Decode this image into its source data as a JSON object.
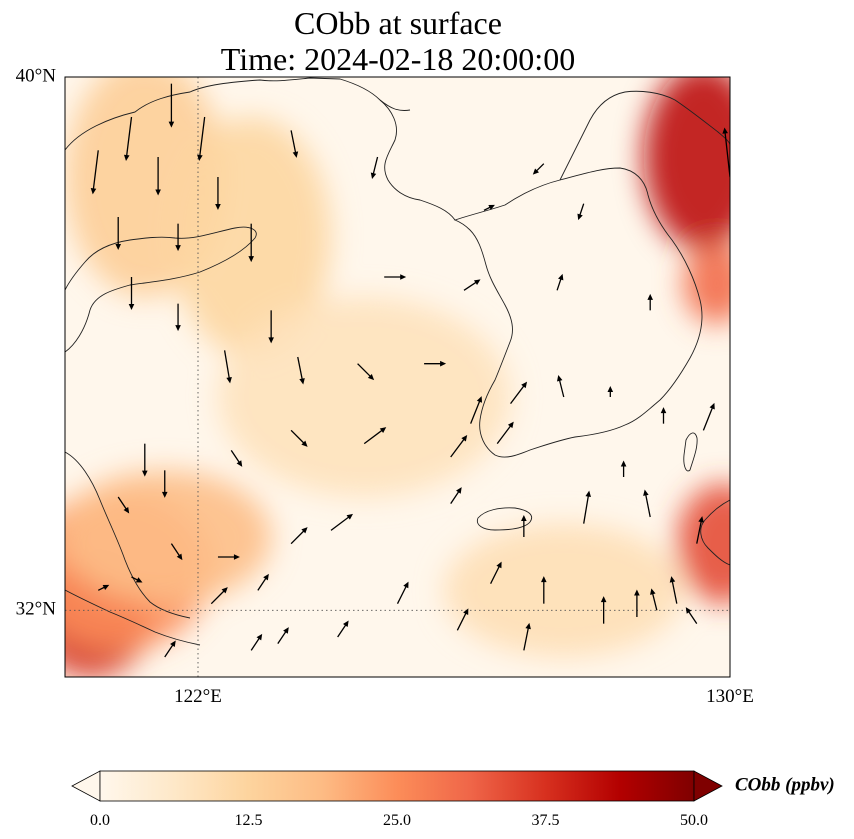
{
  "title_line1": "CObb at surface",
  "title_line2": "Time: 2024-02-18 20:00:00",
  "map": {
    "lon_range": [
      120,
      130
    ],
    "lat_range": [
      31,
      40
    ],
    "lat_ticks": [
      {
        "value": 40,
        "label": "40°N"
      },
      {
        "value": 32,
        "label": "32°N"
      }
    ],
    "lon_ticks": [
      {
        "value": 122,
        "label": "122°E"
      },
      {
        "value": 130,
        "label": "130°E"
      }
    ],
    "gridlines": {
      "lon": [
        122
      ],
      "lat": [
        32
      ],
      "style": "dotted"
    }
  },
  "colorbar": {
    "label": "CObb (ppbv)",
    "min": 0,
    "max": 50,
    "ticks": [
      "0.0",
      "12.5",
      "25.0",
      "37.5",
      "50.0"
    ],
    "extend": "both",
    "colormap": "OrRd",
    "stops": [
      "#fff7ec",
      "#fee8c8",
      "#fdd49e",
      "#fdbb84",
      "#fc8d59",
      "#ef6548",
      "#d7301f",
      "#b30000",
      "#7f0000"
    ]
  },
  "field_blobs": [
    {
      "lon": 120.4,
      "lat": 31.9,
      "rx": 0.9,
      "ry": 0.9,
      "value": 38
    },
    {
      "lon": 120.8,
      "lat": 32.6,
      "rx": 1.4,
      "ry": 1.2,
      "value": 25
    },
    {
      "lon": 121.5,
      "lat": 33.1,
      "rx": 1.6,
      "ry": 1.0,
      "value": 18
    },
    {
      "lon": 121.2,
      "lat": 38.5,
      "rx": 1.2,
      "ry": 1.8,
      "value": 14
    },
    {
      "lon": 122.8,
      "lat": 37.6,
      "rx": 1.2,
      "ry": 1.8,
      "value": 12
    },
    {
      "lon": 129.6,
      "lat": 38.8,
      "rx": 0.9,
      "ry": 1.4,
      "value": 42
    },
    {
      "lon": 129.8,
      "lat": 36.9,
      "rx": 0.5,
      "ry": 0.6,
      "value": 30
    },
    {
      "lon": 129.9,
      "lat": 33.0,
      "rx": 0.7,
      "ry": 0.9,
      "value": 34
    },
    {
      "lon": 127.5,
      "lat": 32.3,
      "rx": 1.8,
      "ry": 1.0,
      "value": 9
    },
    {
      "lon": 124.5,
      "lat": 35.2,
      "rx": 2.2,
      "ry": 1.5,
      "value": 8
    }
  ],
  "wind_vectors": [
    [
      121.6,
      39.9,
      0,
      -0.8
    ],
    [
      122.1,
      39.4,
      -0.1,
      -0.8
    ],
    [
      121.0,
      39.4,
      -0.1,
      -0.8
    ],
    [
      120.5,
      38.9,
      -0.1,
      -0.8
    ],
    [
      121.4,
      38.8,
      0,
      -0.7
    ],
    [
      122.3,
      38.5,
      0,
      -0.6
    ],
    [
      120.8,
      37.9,
      0,
      -0.6
    ],
    [
      121.7,
      37.8,
      0,
      -0.5
    ],
    [
      122.8,
      37.8,
      0,
      -0.7
    ],
    [
      123.4,
      39.2,
      0.1,
      -0.5
    ],
    [
      124.7,
      38.8,
      -0.1,
      -0.4
    ],
    [
      126.3,
      38.0,
      0.2,
      0.1
    ],
    [
      127.2,
      38.7,
      -0.2,
      -0.2
    ],
    [
      127.8,
      38.1,
      -0.1,
      -0.3
    ],
    [
      121.0,
      37.0,
      0,
      -0.6
    ],
    [
      121.7,
      36.6,
      0,
      -0.5
    ],
    [
      123.1,
      36.5,
      0,
      -0.6
    ],
    [
      124.8,
      37.0,
      0.4,
      0
    ],
    [
      126.0,
      36.8,
      0.3,
      0.2
    ],
    [
      127.4,
      36.8,
      0.1,
      0.3
    ],
    [
      128.8,
      36.5,
      0,
      0.3
    ],
    [
      122.4,
      35.9,
      0.1,
      -0.6
    ],
    [
      123.5,
      35.8,
      0.1,
      -0.5
    ],
    [
      124.4,
      35.7,
      0.3,
      -0.3
    ],
    [
      125.4,
      35.7,
      0.4,
      0
    ],
    [
      126.7,
      35.1,
      0.3,
      0.4
    ],
    [
      127.5,
      35.2,
      -0.1,
      0.4
    ],
    [
      128.2,
      35.2,
      0,
      0.2
    ],
    [
      129.0,
      34.8,
      0,
      0.3
    ],
    [
      129.6,
      34.7,
      0.2,
      0.5
    ],
    [
      121.2,
      34.5,
      0,
      -0.6
    ],
    [
      121.5,
      34.1,
      0,
      -0.5
    ],
    [
      122.5,
      34.4,
      0.2,
      -0.3
    ],
    [
      123.4,
      34.7,
      0.3,
      -0.3
    ],
    [
      124.5,
      34.5,
      0.4,
      0.3
    ],
    [
      125.8,
      34.3,
      0.3,
      0.4
    ],
    [
      126.5,
      34.5,
      0.3,
      0.4
    ],
    [
      128.4,
      34.0,
      0,
      0.3
    ],
    [
      120.8,
      33.7,
      0.2,
      -0.3
    ],
    [
      121.6,
      33.0,
      0.2,
      -0.3
    ],
    [
      122.3,
      32.8,
      0.4,
      0
    ],
    [
      123.4,
      33.0,
      0.3,
      0.3
    ],
    [
      124.0,
      33.2,
      0.4,
      0.3
    ],
    [
      125.8,
      33.6,
      0.2,
      0.3
    ],
    [
      126.9,
      33.1,
      0,
      0.4
    ],
    [
      127.8,
      33.3,
      0.1,
      0.6
    ],
    [
      128.8,
      33.4,
      -0.1,
      0.5
    ],
    [
      129.5,
      33.0,
      0.1,
      0.5
    ],
    [
      120.5,
      32.3,
      0.2,
      0.1
    ],
    [
      121.0,
      32.5,
      0.2,
      -0.1
    ],
    [
      122.2,
      32.1,
      0.3,
      0.3
    ],
    [
      122.9,
      32.3,
      0.2,
      0.3
    ],
    [
      123.2,
      31.5,
      0.2,
      0.3
    ],
    [
      124.1,
      31.6,
      0.2,
      0.3
    ],
    [
      125.0,
      32.1,
      0.2,
      0.4
    ],
    [
      125.9,
      31.7,
      0.2,
      0.4
    ],
    [
      126.4,
      32.4,
      0.2,
      0.4
    ],
    [
      127.2,
      32.1,
      0,
      0.5
    ],
    [
      128.1,
      31.8,
      0,
      0.5
    ],
    [
      128.6,
      31.9,
      0,
      0.5
    ],
    [
      129.2,
      32.1,
      -0.1,
      0.5
    ],
    [
      126.1,
      34.8,
      0.2,
      0.5
    ],
    [
      128.9,
      32.0,
      -0.1,
      0.4
    ],
    [
      129.5,
      31.8,
      -0.2,
      0.3
    ],
    [
      126.9,
      31.4,
      0.1,
      0.5
    ],
    [
      121.5,
      31.3,
      0.2,
      0.3
    ],
    [
      122.8,
      31.4,
      0.2,
      0.3
    ],
    [
      130.0,
      38.5,
      -0.1,
      0.9
    ]
  ]
}
